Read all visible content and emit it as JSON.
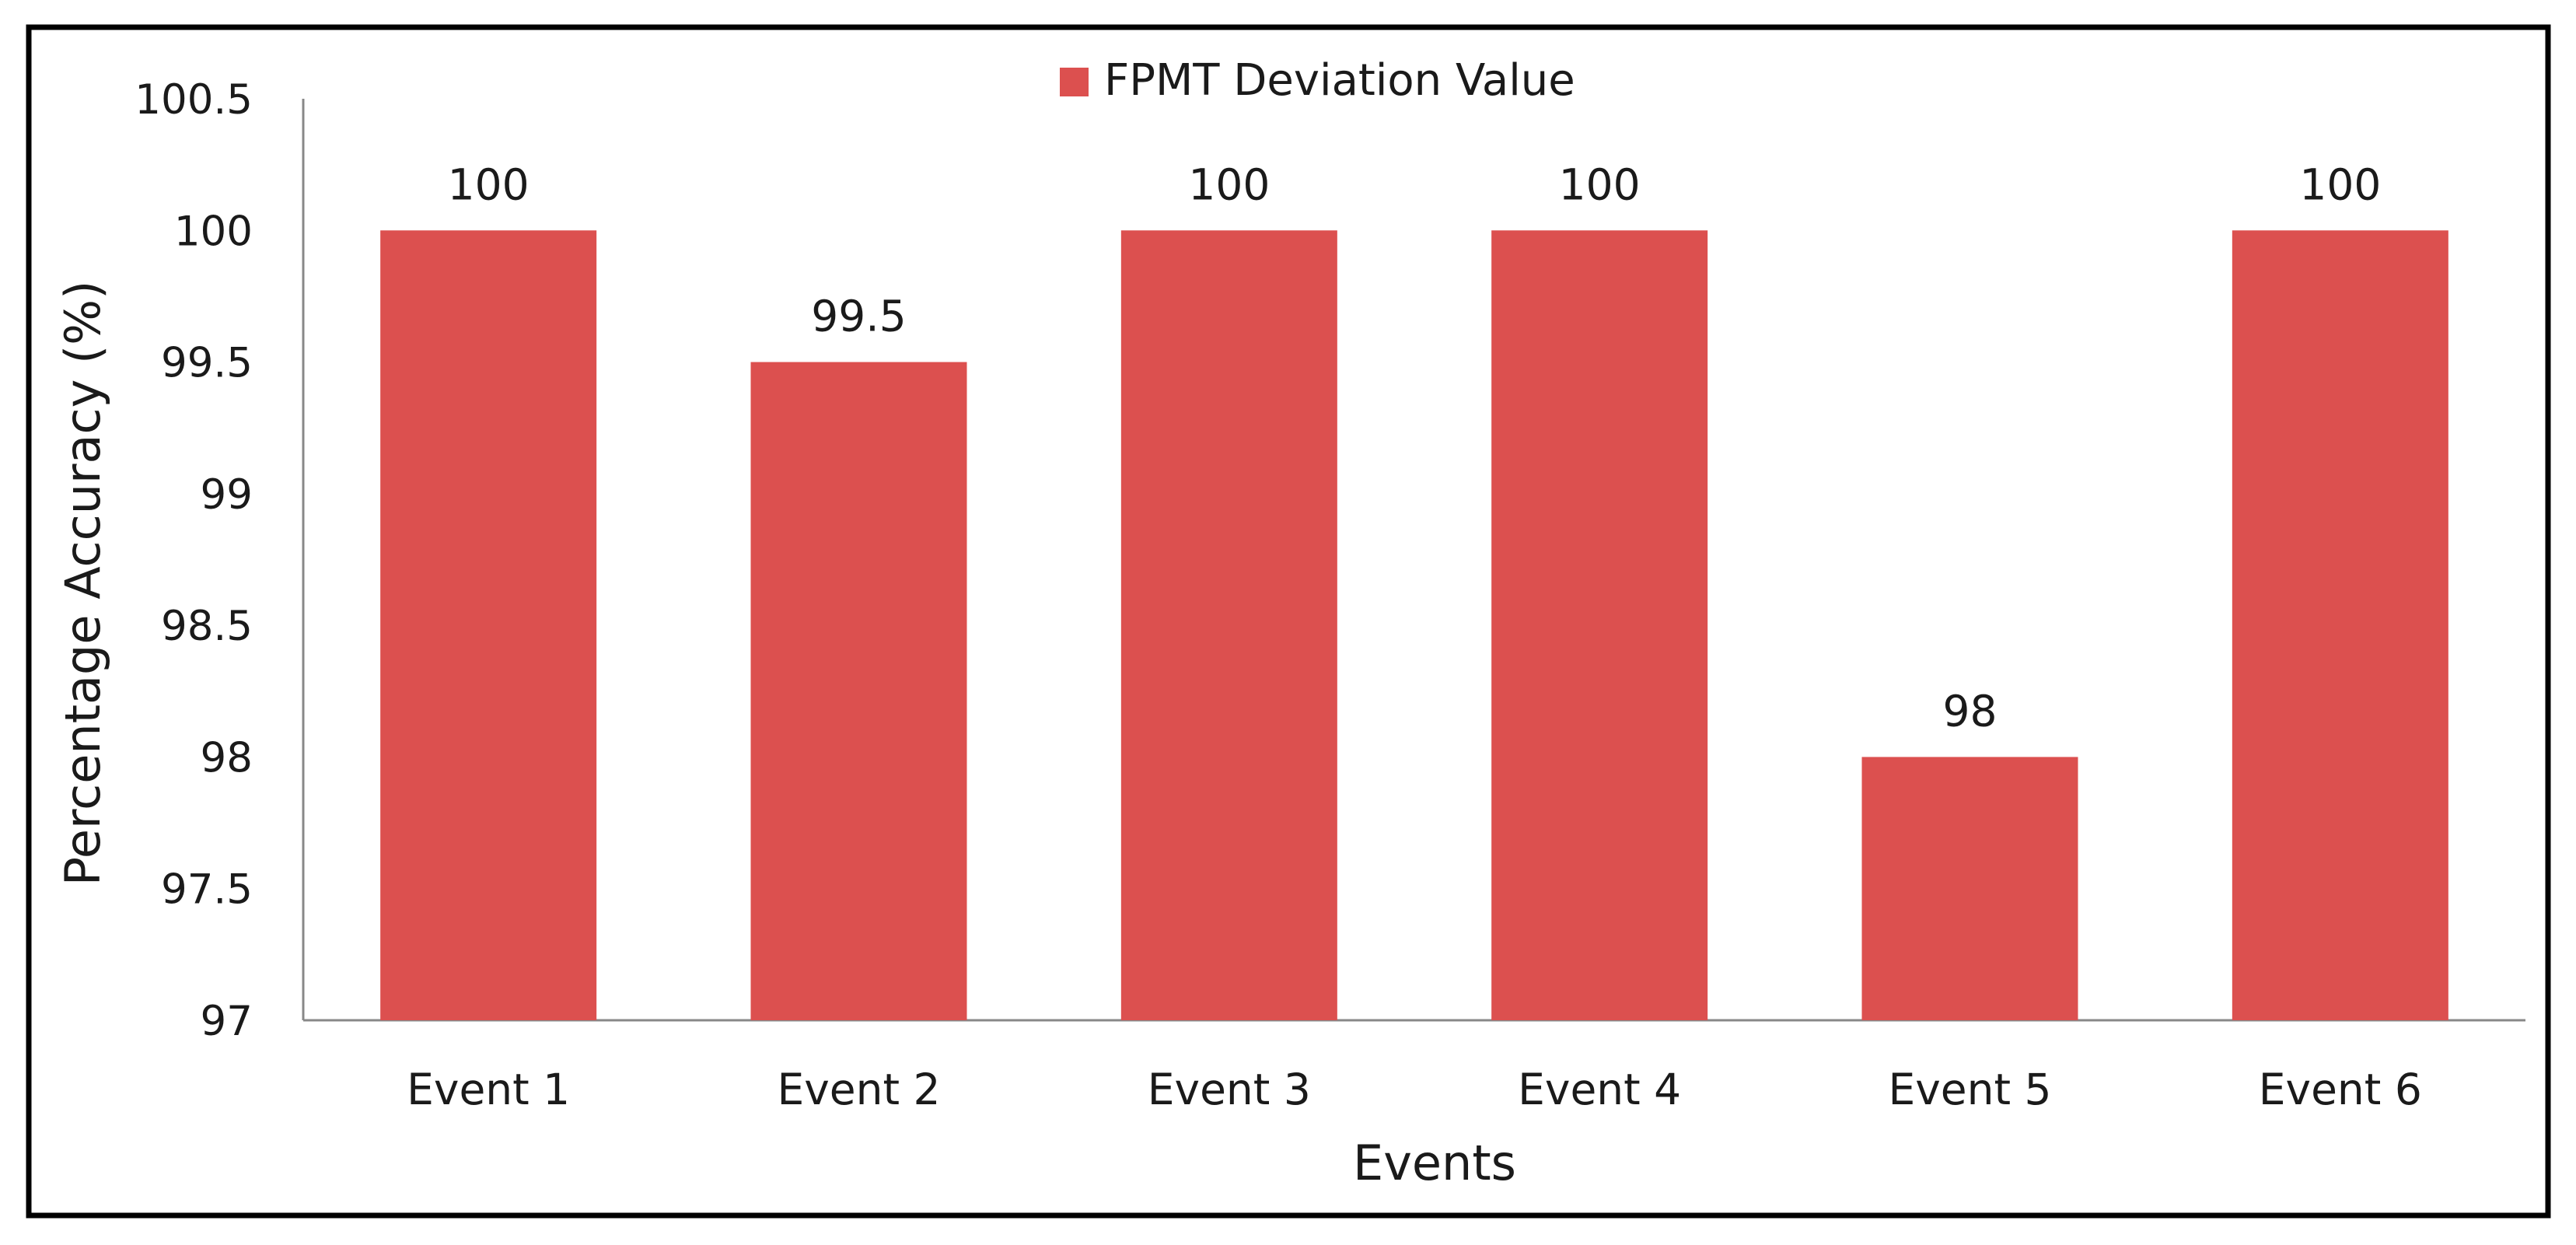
{
  "chart_data": {
    "type": "bar",
    "title": "",
    "xlabel": "Events",
    "ylabel": "Percentage Accuracy (%)",
    "ylim": [
      97,
      100.5
    ],
    "yticks": [
      97,
      97.5,
      98,
      98.5,
      99,
      99.5,
      100,
      100.5
    ],
    "ytick_labels": [
      "97",
      "97.5",
      "98",
      "98.5",
      "99",
      "99.5",
      "100",
      "100.5"
    ],
    "categories": [
      "Event 1",
      "Event 2",
      "Event 3",
      "Event 4",
      "Event 5",
      "Event 6"
    ],
    "series": [
      {
        "name": "FPMT Deviation Value",
        "color": "#dc504f",
        "values": [
          100,
          99.5,
          100,
          100,
          98,
          100
        ],
        "data_labels": [
          "100",
          "99.5",
          "100",
          "100",
          "98",
          "100"
        ]
      }
    ],
    "legend_position": "top-center",
    "grid": false
  }
}
